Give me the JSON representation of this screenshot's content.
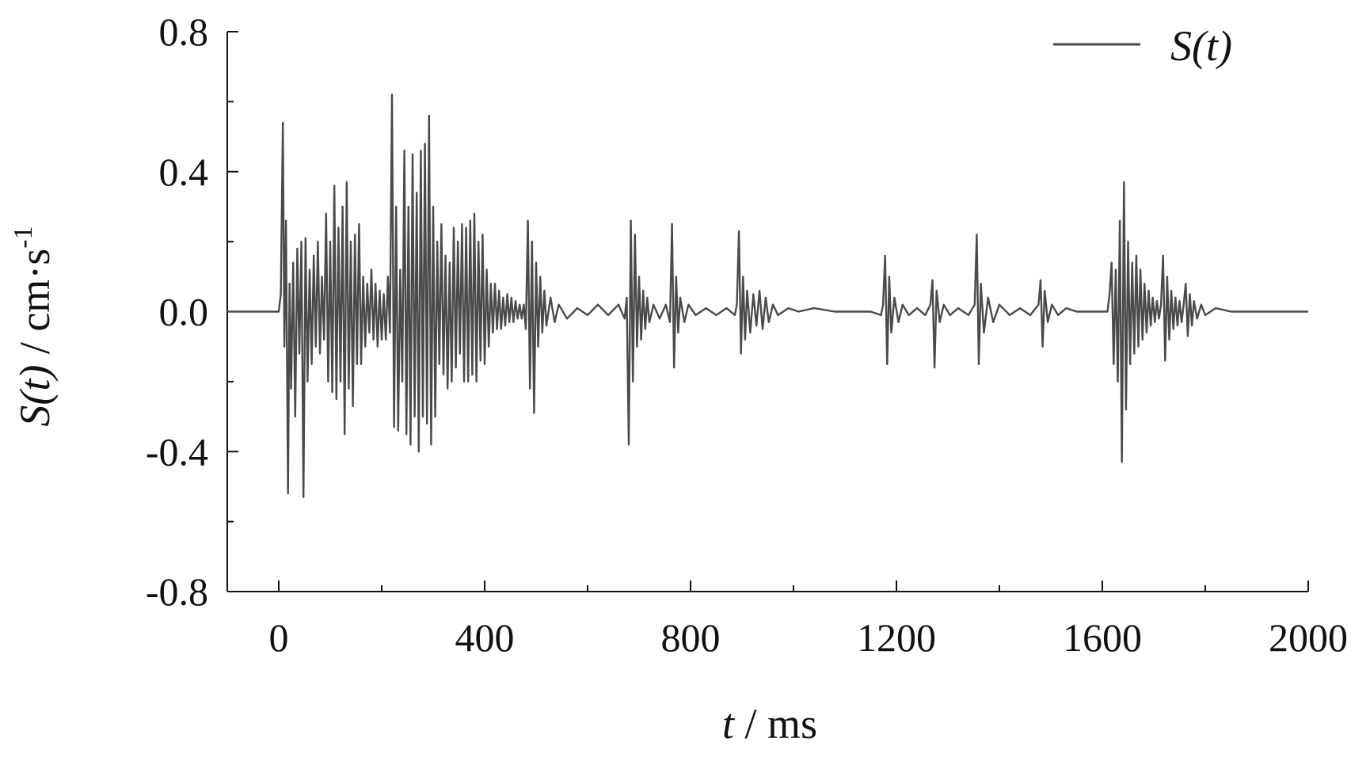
{
  "chart_data": {
    "type": "line",
    "xlabel": {
      "var": "t",
      "unit": " / ms"
    },
    "ylabel": {
      "var": "S(t)",
      "unit": " / cm·s",
      "sup": "-1"
    },
    "xlim": [
      -100,
      2000
    ],
    "ylim": [
      -0.8,
      0.8
    ],
    "xticks": [
      0,
      400,
      800,
      1200,
      1600,
      2000
    ],
    "xtick_labels": [
      "0",
      "400",
      "800",
      "1200",
      "1600",
      "2000"
    ],
    "yticks": [
      -0.8,
      -0.4,
      0.0,
      0.4,
      0.8
    ],
    "ytick_labels": [
      "-0.8",
      "-0.4",
      "0.0",
      "0.4",
      "0.8"
    ],
    "grid": false,
    "legend_position": "top-right",
    "series": [
      {
        "name": "S(t)",
        "color": "#4a4a4a",
        "points": [
          [
            -100,
            0.0
          ],
          [
            -60,
            0.0
          ],
          [
            -20,
            0.0
          ],
          [
            0,
            0.0
          ],
          [
            4,
            0.05
          ],
          [
            8,
            0.54
          ],
          [
            11,
            -0.1
          ],
          [
            14,
            0.26
          ],
          [
            18,
            -0.52
          ],
          [
            21,
            0.08
          ],
          [
            24,
            -0.22
          ],
          [
            28,
            0.14
          ],
          [
            32,
            -0.3
          ],
          [
            36,
            0.18
          ],
          [
            40,
            -0.12
          ],
          [
            44,
            0.2
          ],
          [
            48,
            -0.53
          ],
          [
            52,
            0.21
          ],
          [
            56,
            -0.2
          ],
          [
            60,
            0.12
          ],
          [
            64,
            -0.15
          ],
          [
            68,
            0.16
          ],
          [
            72,
            -0.1
          ],
          [
            76,
            0.2
          ],
          [
            80,
            -0.12
          ],
          [
            84,
            0.1
          ],
          [
            88,
            -0.08
          ],
          [
            92,
            0.28
          ],
          [
            96,
            -0.2
          ],
          [
            100,
            0.2
          ],
          [
            104,
            -0.23
          ],
          [
            108,
            0.36
          ],
          [
            112,
            -0.25
          ],
          [
            116,
            0.24
          ],
          [
            120,
            -0.2
          ],
          [
            124,
            0.3
          ],
          [
            128,
            -0.35
          ],
          [
            132,
            0.37
          ],
          [
            136,
            -0.22
          ],
          [
            140,
            0.2
          ],
          [
            144,
            -0.27
          ],
          [
            148,
            0.22
          ],
          [
            152,
            -0.15
          ],
          [
            156,
            0.25
          ],
          [
            160,
            -0.15
          ],
          [
            164,
            0.1
          ],
          [
            168,
            -0.1
          ],
          [
            172,
            0.08
          ],
          [
            176,
            -0.06
          ],
          [
            180,
            0.12
          ],
          [
            184,
            -0.08
          ],
          [
            188,
            0.08
          ],
          [
            192,
            -0.1
          ],
          [
            196,
            0.06
          ],
          [
            200,
            -0.08
          ],
          [
            204,
            0.05
          ],
          [
            208,
            -0.08
          ],
          [
            212,
            0.1
          ],
          [
            216,
            -0.06
          ],
          [
            220,
            0.62
          ],
          [
            224,
            -0.33
          ],
          [
            228,
            0.3
          ],
          [
            232,
            -0.34
          ],
          [
            236,
            0.12
          ],
          [
            240,
            -0.2
          ],
          [
            244,
            0.46
          ],
          [
            248,
            -0.35
          ],
          [
            252,
            0.3
          ],
          [
            256,
            -0.38
          ],
          [
            260,
            0.45
          ],
          [
            264,
            -0.3
          ],
          [
            268,
            0.34
          ],
          [
            272,
            -0.4
          ],
          [
            276,
            0.46
          ],
          [
            280,
            -0.3
          ],
          [
            284,
            0.48
          ],
          [
            288,
            -0.32
          ],
          [
            292,
            0.56
          ],
          [
            296,
            -0.38
          ],
          [
            300,
            0.3
          ],
          [
            304,
            -0.3
          ],
          [
            308,
            0.2
          ],
          [
            312,
            -0.15
          ],
          [
            316,
            0.25
          ],
          [
            320,
            -0.18
          ],
          [
            324,
            0.16
          ],
          [
            328,
            -0.22
          ],
          [
            332,
            0.14
          ],
          [
            336,
            -0.2
          ],
          [
            340,
            0.24
          ],
          [
            344,
            -0.16
          ],
          [
            348,
            0.2
          ],
          [
            352,
            -0.12
          ],
          [
            356,
            0.25
          ],
          [
            360,
            -0.2
          ],
          [
            364,
            0.24
          ],
          [
            368,
            -0.2
          ],
          [
            372,
            0.26
          ],
          [
            376,
            -0.18
          ],
          [
            380,
            0.28
          ],
          [
            384,
            -0.2
          ],
          [
            388,
            0.2
          ],
          [
            392,
            -0.14
          ],
          [
            396,
            0.22
          ],
          [
            400,
            -0.15
          ],
          [
            404,
            0.12
          ],
          [
            408,
            -0.1
          ],
          [
            412,
            0.08
          ],
          [
            416,
            -0.06
          ],
          [
            420,
            0.08
          ],
          [
            424,
            -0.05
          ],
          [
            428,
            0.06
          ],
          [
            432,
            -0.05
          ],
          [
            436,
            0.04
          ],
          [
            440,
            -0.04
          ],
          [
            444,
            0.05
          ],
          [
            448,
            -0.03
          ],
          [
            452,
            0.04
          ],
          [
            456,
            -0.03
          ],
          [
            460,
            0.03
          ],
          [
            464,
            -0.02
          ],
          [
            468,
            0.02
          ],
          [
            472,
            -0.02
          ],
          [
            476,
            0.02
          ],
          [
            480,
            -0.05
          ],
          [
            484,
            0.26
          ],
          [
            488,
            -0.22
          ],
          [
            492,
            0.2
          ],
          [
            496,
            -0.29
          ],
          [
            500,
            0.14
          ],
          [
            504,
            -0.1
          ],
          [
            508,
            0.1
          ],
          [
            512,
            -0.06
          ],
          [
            516,
            0.06
          ],
          [
            520,
            -0.04
          ],
          [
            528,
            0.04
          ],
          [
            536,
            -0.03
          ],
          [
            544,
            0.02
          ],
          [
            560,
            -0.02
          ],
          [
            580,
            0.01
          ],
          [
            600,
            -0.01
          ],
          [
            620,
            0.02
          ],
          [
            640,
            -0.01
          ],
          [
            660,
            0.02
          ],
          [
            672,
            -0.02
          ],
          [
            676,
            0.04
          ],
          [
            680,
            -0.38
          ],
          [
            684,
            0.26
          ],
          [
            688,
            -0.2
          ],
          [
            692,
            0.22
          ],
          [
            696,
            -0.1
          ],
          [
            700,
            0.1
          ],
          [
            704,
            -0.08
          ],
          [
            708,
            0.06
          ],
          [
            712,
            -0.05
          ],
          [
            716,
            0.04
          ],
          [
            720,
            -0.03
          ],
          [
            728,
            0.02
          ],
          [
            740,
            -0.02
          ],
          [
            752,
            0.02
          ],
          [
            760,
            -0.03
          ],
          [
            764,
            0.25
          ],
          [
            768,
            -0.16
          ],
          [
            772,
            0.1
          ],
          [
            776,
            -0.06
          ],
          [
            780,
            0.04
          ],
          [
            788,
            -0.03
          ],
          [
            796,
            0.02
          ],
          [
            810,
            -0.01
          ],
          [
            830,
            0.01
          ],
          [
            850,
            -0.01
          ],
          [
            870,
            0.01
          ],
          [
            886,
            -0.01
          ],
          [
            890,
            0.02
          ],
          [
            894,
            0.23
          ],
          [
            898,
            -0.12
          ],
          [
            902,
            0.1
          ],
          [
            906,
            -0.08
          ],
          [
            910,
            0.06
          ],
          [
            916,
            -0.06
          ],
          [
            922,
            0.05
          ],
          [
            928,
            -0.04
          ],
          [
            934,
            0.06
          ],
          [
            940,
            -0.05
          ],
          [
            946,
            0.04
          ],
          [
            952,
            -0.03
          ],
          [
            960,
            0.02
          ],
          [
            970,
            -0.01
          ],
          [
            990,
            0.01
          ],
          [
            1010,
            0.0
          ],
          [
            1040,
            0.01
          ],
          [
            1080,
            0.0
          ],
          [
            1120,
            0.0
          ],
          [
            1150,
            0.0
          ],
          [
            1170,
            -0.01
          ],
          [
            1174,
            0.02
          ],
          [
            1178,
            0.16
          ],
          [
            1182,
            -0.15
          ],
          [
            1186,
            0.1
          ],
          [
            1190,
            -0.06
          ],
          [
            1196,
            0.04
          ],
          [
            1204,
            -0.03
          ],
          [
            1212,
            0.02
          ],
          [
            1224,
            -0.01
          ],
          [
            1240,
            0.01
          ],
          [
            1256,
            -0.01
          ],
          [
            1266,
            0.02
          ],
          [
            1270,
            0.09
          ],
          [
            1274,
            -0.16
          ],
          [
            1278,
            0.06
          ],
          [
            1284,
            -0.03
          ],
          [
            1292,
            0.02
          ],
          [
            1304,
            -0.01
          ],
          [
            1320,
            0.01
          ],
          [
            1340,
            -0.01
          ],
          [
            1352,
            0.02
          ],
          [
            1356,
            0.22
          ],
          [
            1360,
            -0.15
          ],
          [
            1364,
            0.08
          ],
          [
            1370,
            -0.06
          ],
          [
            1378,
            0.04
          ],
          [
            1388,
            -0.03
          ],
          [
            1400,
            0.02
          ],
          [
            1420,
            -0.01
          ],
          [
            1440,
            0.01
          ],
          [
            1460,
            -0.01
          ],
          [
            1476,
            0.02
          ],
          [
            1480,
            0.09
          ],
          [
            1484,
            -0.1
          ],
          [
            1488,
            0.06
          ],
          [
            1494,
            -0.03
          ],
          [
            1502,
            0.02
          ],
          [
            1514,
            -0.01
          ],
          [
            1530,
            0.01
          ],
          [
            1550,
            0.0
          ],
          [
            1570,
            0.0
          ],
          [
            1590,
            0.0
          ],
          [
            1610,
            0.0
          ],
          [
            1614,
            0.05
          ],
          [
            1618,
            0.14
          ],
          [
            1622,
            -0.15
          ],
          [
            1626,
            0.12
          ],
          [
            1630,
            -0.2
          ],
          [
            1634,
            0.26
          ],
          [
            1638,
            -0.43
          ],
          [
            1642,
            0.37
          ],
          [
            1646,
            -0.28
          ],
          [
            1650,
            0.2
          ],
          [
            1654,
            -0.15
          ],
          [
            1658,
            0.14
          ],
          [
            1662,
            -0.12
          ],
          [
            1666,
            0.16
          ],
          [
            1670,
            -0.1
          ],
          [
            1674,
            0.12
          ],
          [
            1678,
            -0.08
          ],
          [
            1682,
            0.08
          ],
          [
            1686,
            -0.06
          ],
          [
            1690,
            0.06
          ],
          [
            1694,
            -0.04
          ],
          [
            1698,
            0.04
          ],
          [
            1702,
            -0.03
          ],
          [
            1706,
            0.03
          ],
          [
            1710,
            -0.02
          ],
          [
            1714,
            0.02
          ],
          [
            1718,
            0.16
          ],
          [
            1722,
            -0.14
          ],
          [
            1726,
            0.1
          ],
          [
            1730,
            -0.08
          ],
          [
            1734,
            0.06
          ],
          [
            1738,
            -0.05
          ],
          [
            1742,
            0.04
          ],
          [
            1746,
            -0.04
          ],
          [
            1750,
            0.03
          ],
          [
            1754,
            -0.03
          ],
          [
            1758,
            0.02
          ],
          [
            1762,
            0.08
          ],
          [
            1766,
            -0.07
          ],
          [
            1770,
            0.05
          ],
          [
            1774,
            -0.04
          ],
          [
            1778,
            0.03
          ],
          [
            1784,
            -0.02
          ],
          [
            1792,
            0.02
          ],
          [
            1800,
            -0.01
          ],
          [
            1820,
            0.01
          ],
          [
            1850,
            0.0
          ],
          [
            1880,
            0.0
          ],
          [
            1920,
            0.0
          ],
          [
            1960,
            0.0
          ],
          [
            2000,
            0.0
          ]
        ]
      }
    ]
  }
}
